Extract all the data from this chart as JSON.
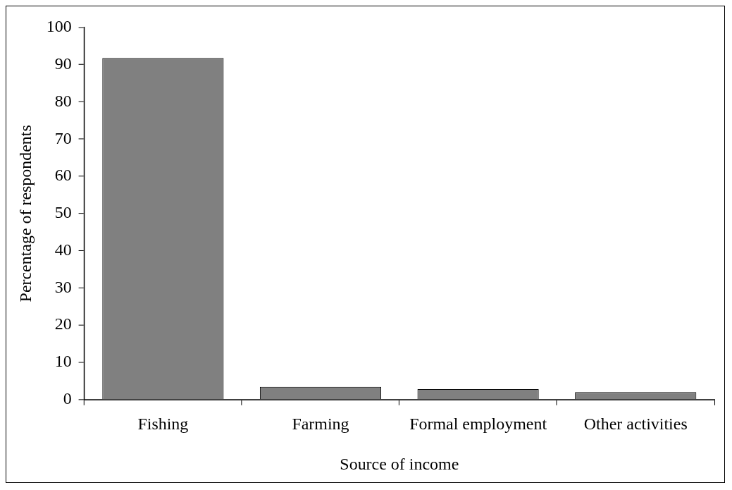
{
  "chart_data": {
    "type": "bar",
    "xlabel": "Source of income",
    "ylabel": "Percentage of respondents",
    "categories": [
      "Fishing",
      "Farming",
      "Formal employment",
      "Other activities"
    ],
    "values": [
      91.8,
      3.4,
      2.8,
      2.0
    ],
    "color": "#808080",
    "ylim": [
      0,
      100
    ],
    "yticks": [
      0,
      10,
      20,
      30,
      40,
      50,
      60,
      70,
      80,
      90,
      100
    ],
    "grid": false,
    "legend": false
  }
}
